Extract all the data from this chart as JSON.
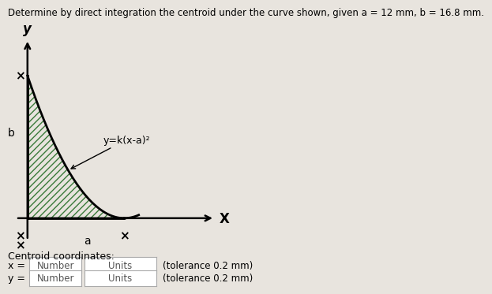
{
  "title": "Determine by direct integration the centroid under the curve shown, given a = 12 mm, b = 16.8 mm.",
  "title_fontsize": 8.5,
  "a": 12,
  "b": 16.8,
  "curve_label": "y=k(x-a)²",
  "x_axis_label": "X",
  "y_axis_label": "y",
  "a_label": "a",
  "b_label": "b",
  "centroid_label": "Centroid coordinates:",
  "x_input_label": "x =",
  "y_input_label": "y =",
  "number_placeholder": "Number",
  "units_placeholder": "Units",
  "tolerance_text": "(tolerance 0.2 mm)",
  "background_color": "#e8e4de",
  "hatch_color": "#3a7a3a",
  "curve_color": "#000000",
  "box_bg": "#ffffff",
  "box_edge": "#aaaaaa"
}
